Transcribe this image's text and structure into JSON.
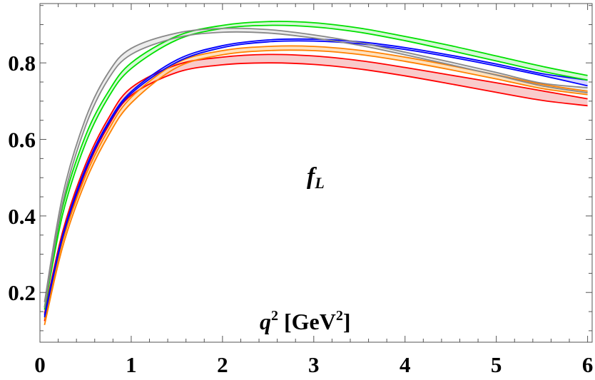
{
  "chart_data": {
    "type": "line",
    "xlim": [
      0,
      6.05
    ],
    "ylim": [
      0.07,
      0.955
    ],
    "x_ticks": [
      "0",
      "1",
      "2",
      "3",
      "4",
      "5",
      "6"
    ],
    "y_ticks": [
      "0.2",
      "0.4",
      "0.6",
      "0.8"
    ],
    "grid": false,
    "annotations": {
      "curve_label": {
        "main": "f",
        "sub": "L"
      },
      "axis_label": {
        "q": "q",
        "q_exp": "2",
        "unit_pre": "[GeV",
        "unit_exp": "2",
        "unit_post": "]"
      }
    },
    "x": [
      0.05,
      0.25,
      0.5,
      0.75,
      1.0,
      1.5,
      2.0,
      2.5,
      3.0,
      3.5,
      4.0,
      4.5,
      5.0,
      5.5,
      6.0
    ],
    "series": [
      {
        "color": "#ff0000",
        "fill": "#f7b9b9",
        "upper": [
          0.145,
          0.36,
          0.535,
          0.655,
          0.735,
          0.795,
          0.815,
          0.822,
          0.818,
          0.806,
          0.788,
          0.768,
          0.748,
          0.727,
          0.706
        ],
        "lower": [
          0.125,
          0.34,
          0.515,
          0.635,
          0.715,
          0.775,
          0.795,
          0.8,
          0.796,
          0.784,
          0.766,
          0.745,
          0.723,
          0.702,
          0.688
        ]
      },
      {
        "color": "#ff8000",
        "fill": "#ffd8a8",
        "upper": [
          0.13,
          0.335,
          0.505,
          0.625,
          0.71,
          0.8,
          0.832,
          0.843,
          0.843,
          0.833,
          0.815,
          0.793,
          0.769,
          0.744,
          0.726
        ],
        "lower": [
          0.115,
          0.32,
          0.49,
          0.61,
          0.695,
          0.788,
          0.821,
          0.832,
          0.832,
          0.822,
          0.804,
          0.782,
          0.758,
          0.733,
          0.717
        ]
      },
      {
        "color": "#0000ff",
        "fill": "#c8c8ff",
        "upper": [
          0.14,
          0.35,
          0.525,
          0.645,
          0.725,
          0.808,
          0.845,
          0.86,
          0.862,
          0.855,
          0.84,
          0.82,
          0.797,
          0.772,
          0.755
        ],
        "lower": [
          0.135,
          0.345,
          0.52,
          0.64,
          0.72,
          0.802,
          0.84,
          0.855,
          0.857,
          0.85,
          0.835,
          0.815,
          0.792,
          0.767,
          0.74
        ]
      },
      {
        "color": "#00e000",
        "fill": "#c8f7c8",
        "upper": [
          0.162,
          0.425,
          0.61,
          0.725,
          0.8,
          0.87,
          0.898,
          0.908,
          0.905,
          0.891,
          0.869,
          0.845,
          0.818,
          0.791,
          0.767
        ],
        "lower": [
          0.155,
          0.405,
          0.59,
          0.71,
          0.785,
          0.86,
          0.89,
          0.898,
          0.894,
          0.88,
          0.858,
          0.832,
          0.805,
          0.778,
          0.755
        ]
      },
      {
        "color": "#888888",
        "fill": "#e6e6e6",
        "upper": [
          0.175,
          0.455,
          0.655,
          0.775,
          0.838,
          0.878,
          0.89,
          0.887,
          0.873,
          0.853,
          0.828,
          0.802,
          0.775,
          0.747,
          0.735
        ],
        "lower": [
          0.16,
          0.435,
          0.635,
          0.758,
          0.822,
          0.866,
          0.88,
          0.878,
          0.865,
          0.846,
          0.821,
          0.795,
          0.768,
          0.74,
          0.722
        ]
      }
    ]
  }
}
